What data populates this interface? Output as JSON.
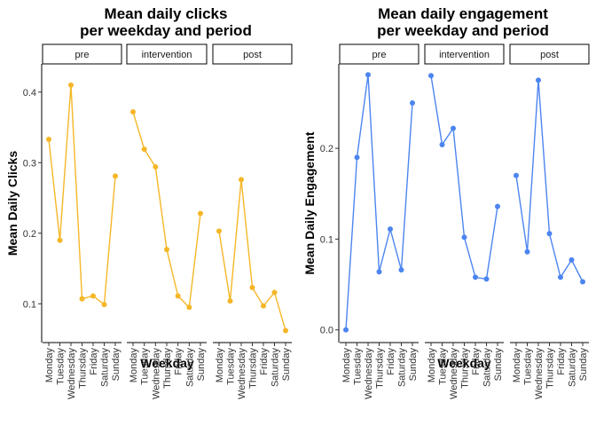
{
  "chart_data": [
    {
      "type": "line",
      "title_lines": [
        "Mean daily clicks",
        "per weekday and period"
      ],
      "xlabel": "Weekday",
      "ylabel": "Mean Daily Clicks",
      "color": "#F5B728",
      "categories": [
        "Monday",
        "Tuesday",
        "Wednesday",
        "Thursday",
        "Friday",
        "Saturday",
        "Sunday"
      ],
      "ylim": [
        0.045,
        0.44
      ],
      "yticks": [
        0.1,
        0.2,
        0.3,
        0.4
      ],
      "ytick_labels": [
        "0.1",
        "0.2",
        "0.3",
        "0.4"
      ],
      "grid": false,
      "facets": [
        {
          "label": "pre",
          "values": [
            0.333,
            0.19,
            0.41,
            0.107,
            0.111,
            0.099,
            0.281
          ]
        },
        {
          "label": "intervention",
          "values": [
            0.372,
            0.319,
            0.294,
            0.177,
            0.111,
            0.095,
            0.228
          ]
        },
        {
          "label": "post",
          "values": [
            0.203,
            0.104,
            0.276,
            0.123,
            0.097,
            0.116,
            0.062
          ]
        }
      ]
    },
    {
      "type": "line",
      "title_lines": [
        "Mean daily engagement",
        "per weekday and period"
      ],
      "xlabel": "Weekday",
      "ylabel": "Mean Daily Engagement",
      "color": "#4C85F0",
      "categories": [
        "Monday",
        "Tuesday",
        "Wednesday",
        "Thursday",
        "Friday",
        "Saturday",
        "Sunday"
      ],
      "ylim": [
        -0.014,
        0.293
      ],
      "yticks": [
        0.0,
        0.1,
        0.2
      ],
      "ytick_labels": [
        "0.0",
        "0.1",
        "0.2"
      ],
      "grid": false,
      "facets": [
        {
          "label": "pre",
          "values": [
            0.0,
            0.19,
            0.281,
            0.064,
            0.111,
            0.066,
            0.25
          ]
        },
        {
          "label": "intervention",
          "values": [
            0.28,
            0.204,
            0.222,
            0.102,
            0.058,
            0.056,
            0.136
          ]
        },
        {
          "label": "post",
          "values": [
            0.17,
            0.086,
            0.275,
            0.106,
            0.058,
            0.077,
            0.053
          ]
        }
      ]
    }
  ]
}
